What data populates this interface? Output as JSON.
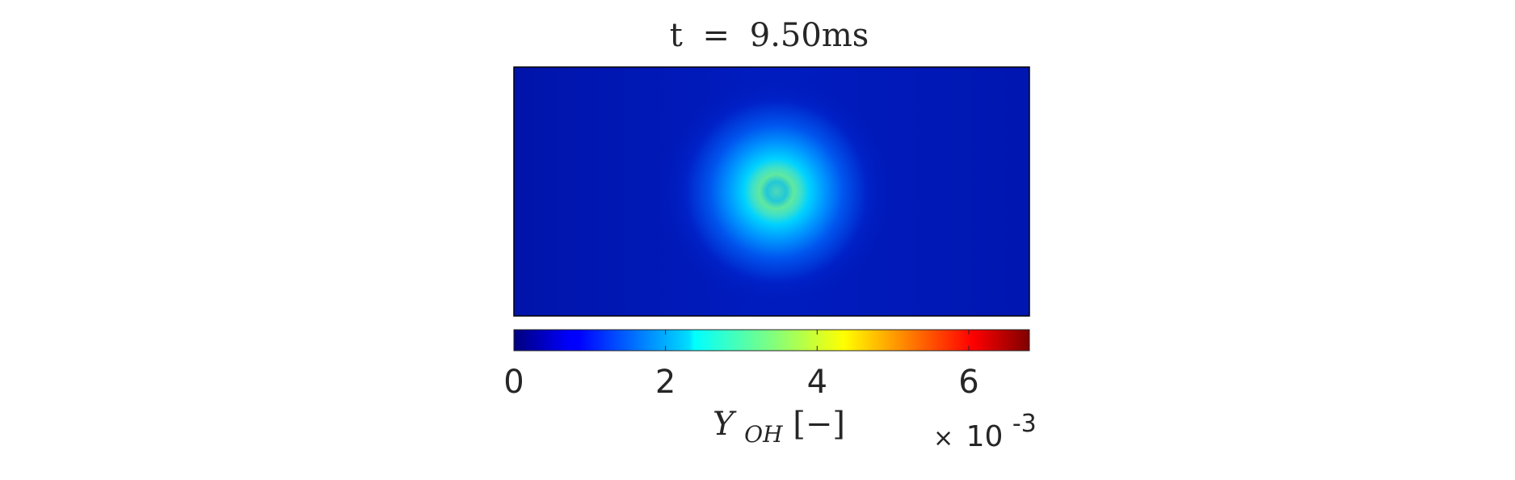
{
  "chart_data": {
    "type": "heatmap",
    "title": "t = 9.50ms",
    "title_parts": {
      "var": "t",
      "eq": "=",
      "value": "9.50ms"
    },
    "colormap": "jet",
    "field": "OH mass fraction",
    "feature": {
      "shape": "circular spot",
      "center_fraction": {
        "x": 0.51,
        "y": 0.5
      },
      "peak_value": 0.0033,
      "background_value": 0.0003
    },
    "colorbar": {
      "range": [
        0,
        0.0068
      ],
      "ticks": [
        0,
        2,
        4,
        6
      ],
      "tick_labels": [
        "0",
        "2",
        "4",
        "6"
      ],
      "label": "Y_OH [−]",
      "label_parts": {
        "main": "Y",
        "sub": "OH",
        "units": "[−]"
      },
      "multiplier_parts": {
        "times": "×",
        "base": "10",
        "exponent": "-3"
      }
    },
    "colors": {
      "background_field": "#0019b8",
      "spot_core": "#5fe3a8",
      "spot_ring": "#00c8ff"
    }
  }
}
